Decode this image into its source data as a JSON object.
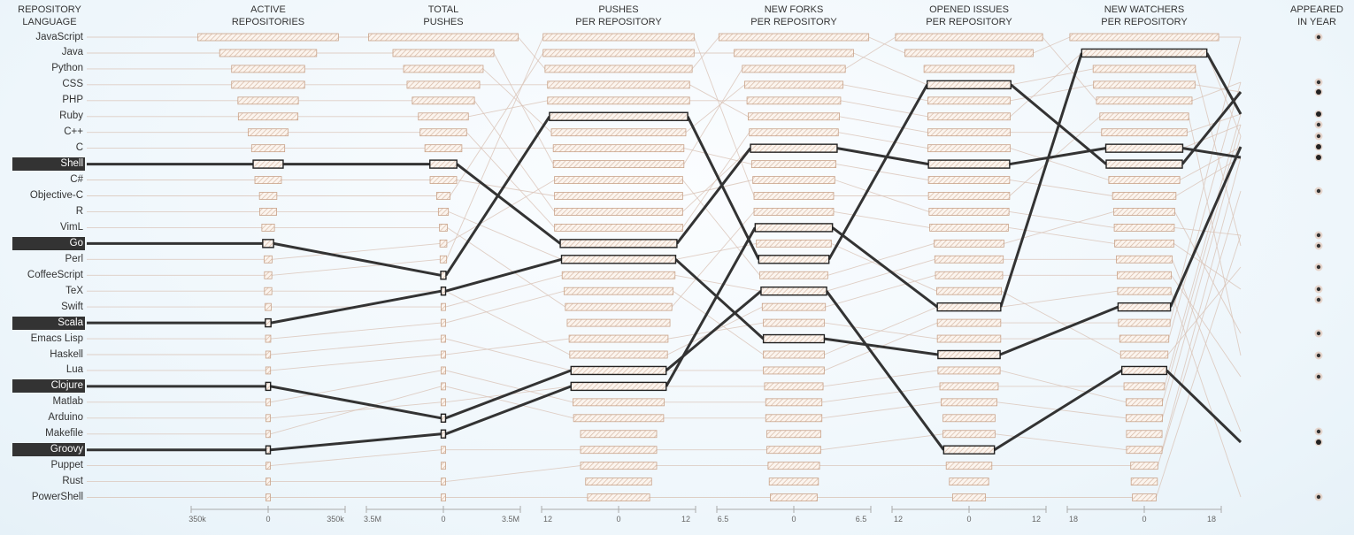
{
  "header": {
    "language_col": [
      "REPOSITORY",
      "LANGUAGE"
    ],
    "columns": [
      [
        "ACTIVE",
        "REPOSITORIES"
      ],
      [
        "TOTAL",
        "PUSHES"
      ],
      [
        "PUSHES",
        "PER REPOSITORY"
      ],
      [
        "NEW FORKS",
        "PER REPOSITORY"
      ],
      [
        "OPENED ISSUES",
        "PER REPOSITORY"
      ],
      [
        "NEW WATCHERS",
        "PER REPOSITORY"
      ]
    ],
    "year_col": [
      "APPEARED",
      "IN YEAR"
    ]
  },
  "axis_ticks": [
    [
      "350k",
      "0",
      "350k"
    ],
    [
      "3.5M",
      "0",
      "3.5M"
    ],
    [
      "12",
      "0",
      "12"
    ],
    [
      "6.5",
      "0",
      "6.5"
    ],
    [
      "12",
      "0",
      "12"
    ],
    [
      "18",
      "0",
      "18"
    ]
  ],
  "languages": [
    "JavaScript",
    "Java",
    "Python",
    "CSS",
    "PHP",
    "Ruby",
    "C++",
    "C",
    "Shell",
    "C#",
    "Objective-C",
    "R",
    "VimL",
    "Go",
    "Perl",
    "CoffeeScript",
    "TeX",
    "Swift",
    "Scala",
    "Emacs Lisp",
    "Haskell",
    "Lua",
    "Clojure",
    "Matlab",
    "Arduino",
    "Makefile",
    "Groovy",
    "Puppet",
    "Rust",
    "PowerShell"
  ],
  "highlighted": [
    "Shell",
    "Go",
    "Scala",
    "Clojure",
    "Groovy"
  ],
  "colors": {
    "highlight": "#333333",
    "bar_stroke": "#c9a38a",
    "bar_hatch": "#d8b9a4",
    "thin_line": "#d9c3b6"
  },
  "chart_data": {
    "type": "ranked-parallel-bars",
    "metrics": [
      {
        "name": "ACTIVE REPOSITORIES",
        "max": 350000,
        "values": [
          323000,
          223000,
          168000,
          168000,
          139000,
          137000,
          92000,
          76000,
          69000,
          61000,
          40000,
          39000,
          29000,
          25000,
          18000,
          17000,
          17000,
          14000,
          13000,
          12000,
          11000,
          11000,
          11000,
          10000,
          10000,
          10000,
          10000,
          9000,
          9000,
          8000
        ]
      },
      {
        "name": "TOTAL PUSHES",
        "max": 3500000,
        "values": [
          3440000,
          2320000,
          1830000,
          1670000,
          1430000,
          1150000,
          1070000,
          850000,
          620000,
          610000,
          310000,
          230000,
          180000,
          160000,
          150000,
          120000,
          100000,
          90000,
          80000,
          70000,
          60000,
          60000,
          50000,
          50000,
          50000,
          40000,
          40000,
          30000,
          30000,
          30000
        ]
      },
      {
        "name": "PUSHES PER REPOSITORY",
        "max": 12,
        "values": [
          11.9,
          11.9,
          11.6,
          11.2,
          11.2,
          10.9,
          10.6,
          10.3,
          10.3,
          10.1,
          10.1,
          10.1,
          10.1,
          9.2,
          9.0,
          8.9,
          8.6,
          8.4,
          8.1,
          7.8,
          7.7,
          7.5,
          7.5,
          7.2,
          7.1,
          6.0,
          6.0,
          6.0,
          5.2,
          4.9
        ]
      },
      {
        "name": "NEW FORKS PER REPOSITORY",
        "max": 6.5,
        "values": [
          6.4,
          5.1,
          4.4,
          4.2,
          4.0,
          3.9,
          3.8,
          3.7,
          3.6,
          3.5,
          3.4,
          3.4,
          3.3,
          3.2,
          3.0,
          2.9,
          2.8,
          2.7,
          2.6,
          2.6,
          2.6,
          2.6,
          2.5,
          2.4,
          2.4,
          2.3,
          2.3,
          2.2,
          2.1,
          2.0
        ]
      },
      {
        "name": "OPENED ISSUES PER REPOSITORY",
        "max": 12,
        "values": [
          11.6,
          10.1,
          7.1,
          6.6,
          6.5,
          6.5,
          6.5,
          6.5,
          6.4,
          6.4,
          6.4,
          6.3,
          6.2,
          5.5,
          5.4,
          5.3,
          5.1,
          5.0,
          5.0,
          5.0,
          4.9,
          4.9,
          4.6,
          4.4,
          4.1,
          4.1,
          4.0,
          3.6,
          3.1,
          2.6
        ]
      },
      {
        "name": "NEW WATCHERS PER REPOSITORY",
        "max": 18,
        "values": [
          17.6,
          14.8,
          12.1,
          12.0,
          11.3,
          10.5,
          10.1,
          9.1,
          9.0,
          8.4,
          7.5,
          7.2,
          7.1,
          7.0,
          6.6,
          6.4,
          6.3,
          6.2,
          6.1,
          5.8,
          5.6,
          5.3,
          4.8,
          4.3,
          4.3,
          4.2,
          4.2,
          3.2,
          3.1,
          2.8
        ]
      }
    ],
    "ranks": {
      "JavaScript": [
        1,
        1,
        3,
        1,
        2,
        1
      ],
      "Java": [
        2,
        2,
        9,
        3,
        1,
        5
      ],
      "Python": [
        3,
        3,
        7,
        4,
        5,
        4
      ],
      "CSS": [
        4,
        4,
        4,
        6,
        7,
        7
      ],
      "PHP": [
        5,
        5,
        12,
        8,
        9,
        8
      ],
      "Ruby": [
        6,
        6,
        5,
        5,
        6,
        2
      ],
      "C++": [
        7,
        7,
        13,
        7,
        8,
        10
      ],
      "C": [
        8,
        8,
        8,
        9,
        10,
        11
      ],
      "Shell": [
        9,
        9,
        14,
        8,
        9,
        8
      ],
      "C#": [
        10,
        10,
        11,
        10,
        12,
        13
      ],
      "Objective-C": [
        11,
        11,
        2,
        2,
        4,
        3
      ],
      "R": [
        12,
        12,
        15,
        14,
        17,
        21
      ],
      "VimL": [
        13,
        13,
        18,
        12,
        13,
        14
      ],
      "Go": [
        14,
        16,
        6,
        15,
        4,
        9
      ],
      "Perl": [
        15,
        14,
        10,
        16,
        14,
        12
      ],
      "CoffeeScript": [
        16,
        15,
        1,
        11,
        11,
        6
      ],
      "TeX": [
        17,
        17,
        21,
        18,
        16,
        16
      ],
      "Swift": [
        18,
        18,
        16,
        17,
        15,
        15
      ],
      "Scala": [
        19,
        17,
        15,
        20,
        21,
        18
      ],
      "Emacs Lisp": [
        20,
        19,
        17,
        21,
        18,
        17
      ],
      "Haskell": [
        21,
        20,
        22,
        22,
        19,
        19
      ],
      "Lua": [
        22,
        21,
        20,
        19,
        20,
        20
      ],
      "Clojure": [
        23,
        25,
        22,
        17,
        27,
        22
      ],
      "Matlab": [
        24,
        22,
        24,
        24,
        23,
        23
      ],
      "Arduino": [
        25,
        24,
        23,
        23,
        22,
        24
      ],
      "Makefile": [
        26,
        23,
        25,
        25,
        24,
        25
      ],
      "Groovy": [
        27,
        26,
        23,
        13,
        18,
        2
      ],
      "Puppet": [
        28,
        27,
        27,
        27,
        26,
        27
      ],
      "Rust": [
        29,
        29,
        28,
        28,
        28,
        28
      ],
      "PowerShell": [
        30,
        30,
        30,
        30,
        30,
        30
      ]
    },
    "year_dots": 18
  }
}
